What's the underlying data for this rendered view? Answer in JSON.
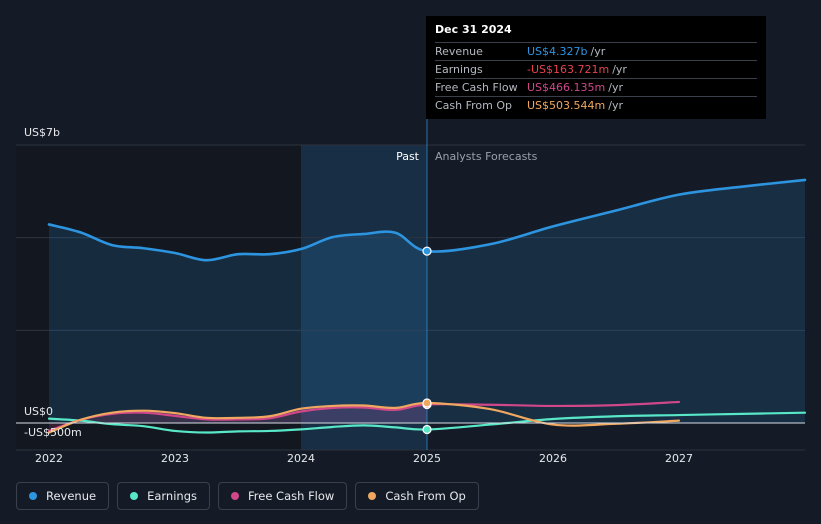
{
  "chart_data": {
    "type": "line",
    "title": "",
    "y_axis_labels": {
      "top": "US$7b",
      "zero": "US$0",
      "bottom": "-US$500m"
    },
    "ylim": [
      -500,
      7000
    ],
    "xlim": [
      2022,
      2028
    ],
    "x_ticks": [
      2022,
      2023,
      2024,
      2025,
      2026,
      2027
    ],
    "x_tick_labels": [
      "2022",
      "2023",
      "2024",
      "2025",
      "2026",
      "2027"
    ],
    "past_label": "Past",
    "forecast_label": "Analysts Forecasts",
    "forecast_start": 2025.0,
    "highlight_start": 2024.0,
    "series": [
      {
        "name": "Revenue",
        "color": "#2d94e0",
        "points": [
          [
            2022.0,
            5000
          ],
          [
            2022.25,
            4800
          ],
          [
            2022.5,
            4480
          ],
          [
            2022.75,
            4400
          ],
          [
            2023.0,
            4280
          ],
          [
            2023.25,
            4100
          ],
          [
            2023.5,
            4250
          ],
          [
            2023.75,
            4250
          ],
          [
            2024.0,
            4380
          ],
          [
            2024.25,
            4680
          ],
          [
            2024.5,
            4760
          ],
          [
            2024.75,
            4790
          ],
          [
            2025.0,
            4327
          ],
          [
            2025.5,
            4500
          ],
          [
            2026.0,
            4950
          ],
          [
            2026.5,
            5350
          ],
          [
            2027.0,
            5750
          ],
          [
            2027.5,
            5950
          ],
          [
            2028.0,
            6120
          ]
        ]
      },
      {
        "name": "Earnings",
        "color": "#58e8c8",
        "points": [
          [
            2022.0,
            110
          ],
          [
            2022.25,
            60
          ],
          [
            2022.5,
            -30
          ],
          [
            2022.75,
            -80
          ],
          [
            2023.0,
            -200
          ],
          [
            2023.25,
            -240
          ],
          [
            2023.5,
            -210
          ],
          [
            2023.75,
            -200
          ],
          [
            2024.0,
            -160
          ],
          [
            2024.25,
            -100
          ],
          [
            2024.5,
            -60
          ],
          [
            2024.75,
            -110
          ],
          [
            2025.0,
            -164
          ],
          [
            2025.5,
            -40
          ],
          [
            2026.0,
            100
          ],
          [
            2026.5,
            170
          ],
          [
            2027.0,
            200
          ],
          [
            2027.5,
            230
          ],
          [
            2028.0,
            260
          ]
        ]
      },
      {
        "name": "Free Cash Flow",
        "color": "#d0488a",
        "points": [
          [
            2022.0,
            -200
          ],
          [
            2022.25,
            80
          ],
          [
            2022.5,
            230
          ],
          [
            2022.75,
            260
          ],
          [
            2023.0,
            180
          ],
          [
            2023.25,
            90
          ],
          [
            2023.5,
            90
          ],
          [
            2023.75,
            120
          ],
          [
            2024.0,
            290
          ],
          [
            2024.25,
            380
          ],
          [
            2024.5,
            390
          ],
          [
            2024.75,
            330
          ],
          [
            2025.0,
            466
          ],
          [
            2025.5,
            460
          ],
          [
            2026.0,
            430
          ],
          [
            2026.5,
            450
          ],
          [
            2027.0,
            530
          ]
        ]
      },
      {
        "name": "Cash From Op",
        "color": "#f0a860",
        "points": [
          [
            2022.0,
            -240
          ],
          [
            2022.25,
            80
          ],
          [
            2022.5,
            260
          ],
          [
            2022.75,
            310
          ],
          [
            2023.0,
            250
          ],
          [
            2023.25,
            130
          ],
          [
            2023.5,
            130
          ],
          [
            2023.75,
            170
          ],
          [
            2024.0,
            360
          ],
          [
            2024.25,
            430
          ],
          [
            2024.5,
            440
          ],
          [
            2024.75,
            380
          ],
          [
            2025.0,
            504
          ],
          [
            2025.5,
            350
          ],
          [
            2026.0,
            -40
          ],
          [
            2026.5,
            -20
          ],
          [
            2027.0,
            60
          ]
        ]
      }
    ],
    "highlight_x": 2025.0
  },
  "tooltip": {
    "date": "Dec 31 2024",
    "unit": "/yr",
    "rows": [
      {
        "label": "Revenue",
        "value": "US$4.327b",
        "color": "#2d94e0"
      },
      {
        "label": "Earnings",
        "value": "-US$163.721m",
        "color": "#e8434f"
      },
      {
        "label": "Free Cash Flow",
        "value": "US$466.135m",
        "color": "#d0488a"
      },
      {
        "label": "Cash From Op",
        "value": "US$503.544m",
        "color": "#f0a860"
      }
    ]
  },
  "legend": [
    {
      "label": "Revenue",
      "color": "#2d94e0"
    },
    {
      "label": "Earnings",
      "color": "#58e8c8"
    },
    {
      "label": "Free Cash Flow",
      "color": "#d0488a"
    },
    {
      "label": "Cash From Op",
      "color": "#f0a860"
    }
  ]
}
